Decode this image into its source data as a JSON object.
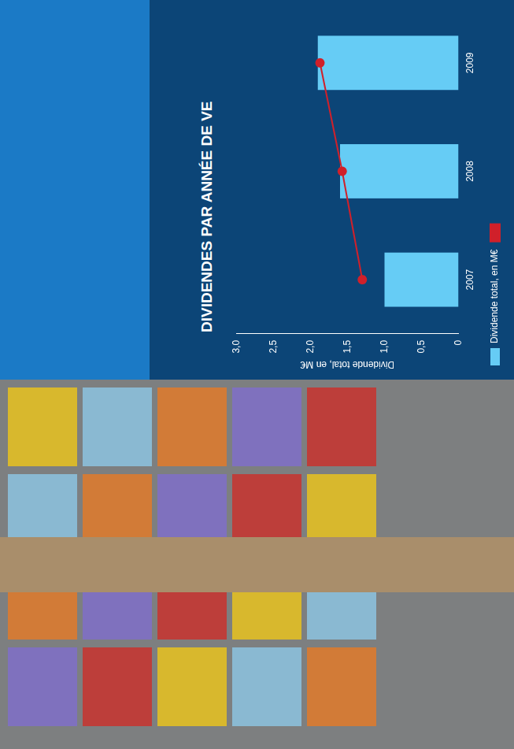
{
  "chart_data": {
    "type": "bar",
    "title": "DIVIDENDES PAR ANNÉE DE VE",
    "categories": [
      "2007",
      "2008",
      "2009"
    ],
    "series": [
      {
        "name": "Dividende total, en M€",
        "color": "#66ccf5",
        "values": [
          1.0,
          1.6,
          1.9
        ]
      },
      {
        "type": "line",
        "color": "#d0202a",
        "marker": "circle",
        "values": [
          1.3,
          1.57,
          1.87
        ]
      }
    ],
    "y_label": "Dividende total, en M€",
    "ylim": [
      0,
      3
    ],
    "yticks": [
      0,
      {
        "value": 0.5,
        "label": "0,5"
      },
      {
        "value": 1,
        "label": "1,0"
      },
      {
        "value": 1.5,
        "label": "1,5"
      },
      {
        "value": 2,
        "label": "2,0"
      },
      {
        "value": 2.5,
        "label": "2,5"
      },
      {
        "value": 3,
        "label": "3,0"
      }
    ],
    "grid": false,
    "legend": "bottom"
  }
}
